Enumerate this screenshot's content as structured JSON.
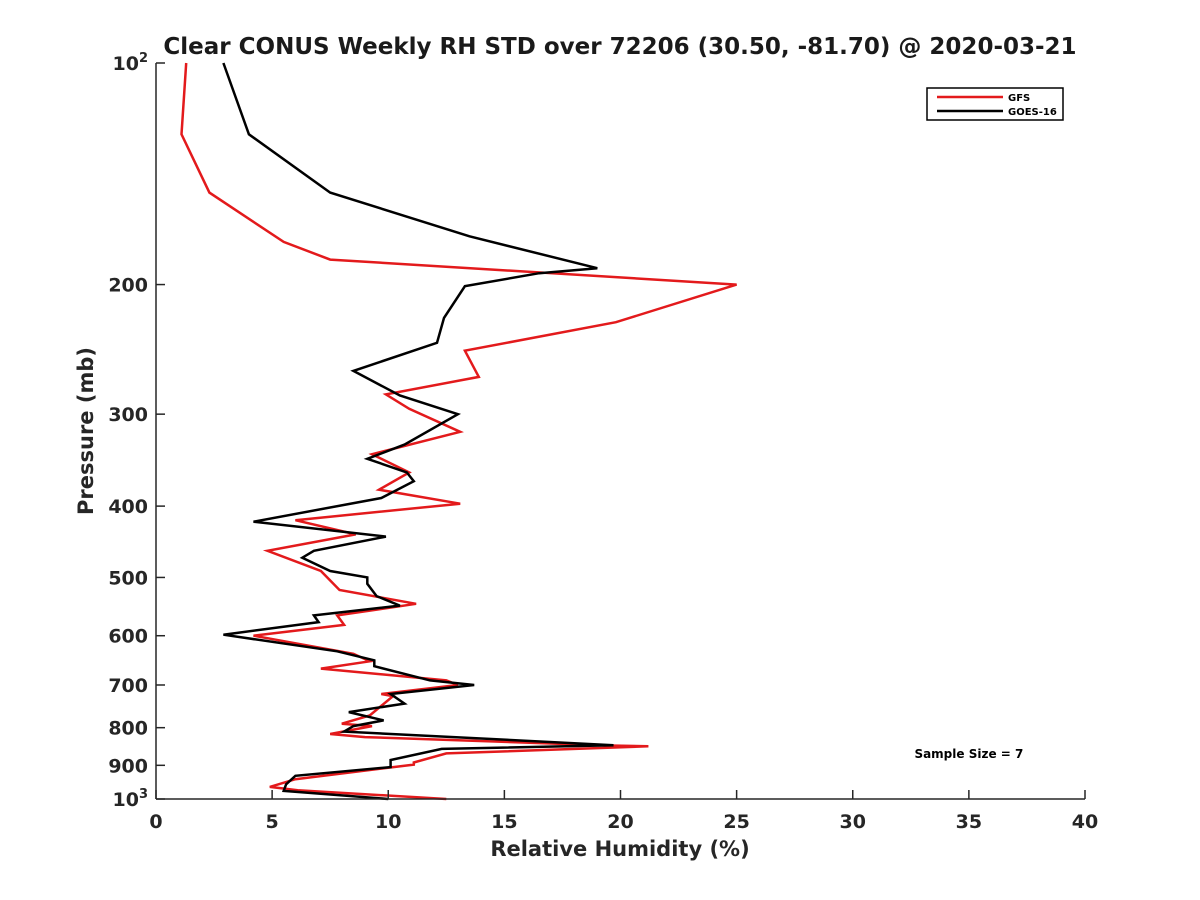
{
  "chart_data": {
    "type": "line",
    "title": "Clear CONUS Weekly RH STD over 72206 (30.50, -81.70) @ 2020-03-21",
    "xlabel": "Relative Humidity (%)",
    "ylabel": "Pressure (mb)",
    "xlim": [
      0,
      40
    ],
    "ylim": [
      100,
      1000
    ],
    "y_scale": "log",
    "y_reversed": true,
    "x_ticks": [
      {
        "value": 0,
        "label": "0"
      },
      {
        "value": 5,
        "label": "5"
      },
      {
        "value": 10,
        "label": "10"
      },
      {
        "value": 15,
        "label": "15"
      },
      {
        "value": 20,
        "label": "20"
      },
      {
        "value": 25,
        "label": "25"
      },
      {
        "value": 30,
        "label": "30"
      },
      {
        "value": 35,
        "label": "35"
      },
      {
        "value": 40,
        "label": "40"
      }
    ],
    "y_ticks": [
      {
        "value": 100,
        "label": "10",
        "sup": "2"
      },
      {
        "value": 200,
        "label": "200",
        "sup": ""
      },
      {
        "value": 300,
        "label": "300",
        "sup": ""
      },
      {
        "value": 400,
        "label": "400",
        "sup": ""
      },
      {
        "value": 500,
        "label": "500",
        "sup": ""
      },
      {
        "value": 600,
        "label": "600",
        "sup": ""
      },
      {
        "value": 700,
        "label": "700",
        "sup": ""
      },
      {
        "value": 800,
        "label": "800",
        "sup": ""
      },
      {
        "value": 900,
        "label": "900",
        "sup": ""
      },
      {
        "value": 1000,
        "label": "10",
        "sup": "3"
      }
    ],
    "grid": false,
    "legend_position": "top-right",
    "series": [
      {
        "name": "GFS",
        "color": "#e31a1c",
        "points": [
          [
            1.3,
            100
          ],
          [
            1.1,
            125
          ],
          [
            2.3,
            150
          ],
          [
            5.5,
            175
          ],
          [
            7.5,
            185
          ],
          [
            25.0,
            200
          ],
          [
            19.8,
            225
          ],
          [
            13.3,
            246
          ],
          [
            13.9,
            267
          ],
          [
            9.9,
            282
          ],
          [
            10.9,
            295
          ],
          [
            13.1,
            317
          ],
          [
            9.3,
            340
          ],
          [
            10.9,
            360
          ],
          [
            9.6,
            380
          ],
          [
            13.1,
            397
          ],
          [
            6.0,
            418
          ],
          [
            8.6,
            437
          ],
          [
            4.8,
            460
          ],
          [
            7.1,
            490
          ],
          [
            7.9,
            520
          ],
          [
            11.2,
            543
          ],
          [
            7.8,
            563
          ],
          [
            8.1,
            580
          ],
          [
            4.2,
            600
          ],
          [
            8.5,
            635
          ],
          [
            9.2,
            650
          ],
          [
            7.1,
            665
          ],
          [
            12.5,
            690
          ],
          [
            13.0,
            700
          ],
          [
            9.7,
            720
          ],
          [
            10.2,
            725
          ],
          [
            9.2,
            770
          ],
          [
            8.0,
            790
          ],
          [
            9.3,
            796
          ],
          [
            7.5,
            816
          ],
          [
            9.0,
            824
          ],
          [
            19.5,
            846
          ],
          [
            21.2,
            848
          ],
          [
            12.5,
            867
          ],
          [
            11.1,
            892
          ],
          [
            11.1,
            898
          ],
          [
            6.0,
            940
          ],
          [
            4.9,
            963
          ],
          [
            6.1,
            973
          ],
          [
            12.5,
            1000
          ]
        ]
      },
      {
        "name": "GOES-16",
        "color": "#000000",
        "points": [
          [
            2.9,
            100
          ],
          [
            4.0,
            125
          ],
          [
            7.5,
            150
          ],
          [
            13.5,
            172
          ],
          [
            19.0,
            190
          ],
          [
            16.5,
            193
          ],
          [
            13.3,
            201
          ],
          [
            12.4,
            222
          ],
          [
            12.1,
            240
          ],
          [
            8.5,
            262
          ],
          [
            10.5,
            283
          ],
          [
            13.0,
            300
          ],
          [
            10.7,
            330
          ],
          [
            9.1,
            345
          ],
          [
            10.8,
            360
          ],
          [
            11.1,
            370
          ],
          [
            9.7,
            390
          ],
          [
            4.2,
            420
          ],
          [
            9.9,
            440
          ],
          [
            6.8,
            460
          ],
          [
            6.3,
            470
          ],
          [
            7.5,
            490
          ],
          [
            9.1,
            500
          ],
          [
            9.1,
            510
          ],
          [
            9.5,
            530
          ],
          [
            10.5,
            546
          ],
          [
            6.8,
            563
          ],
          [
            7.0,
            575
          ],
          [
            2.9,
            598
          ],
          [
            7.8,
            630
          ],
          [
            9.4,
            648
          ],
          [
            9.4,
            660
          ],
          [
            11.8,
            690
          ],
          [
            13.7,
            700
          ],
          [
            10.1,
            720
          ],
          [
            10.7,
            742
          ],
          [
            8.3,
            762
          ],
          [
            9.8,
            782
          ],
          [
            8.5,
            796
          ],
          [
            8.1,
            810
          ],
          [
            19.7,
            845
          ],
          [
            12.3,
            855
          ],
          [
            10.1,
            885
          ],
          [
            10.1,
            905
          ],
          [
            6.0,
            930
          ],
          [
            5.6,
            955
          ],
          [
            5.5,
            975
          ],
          [
            10.0,
            1000
          ]
        ]
      }
    ],
    "annotations": [
      {
        "text": "Sample Size = 7",
        "x": 35,
        "y": 880
      }
    ]
  }
}
